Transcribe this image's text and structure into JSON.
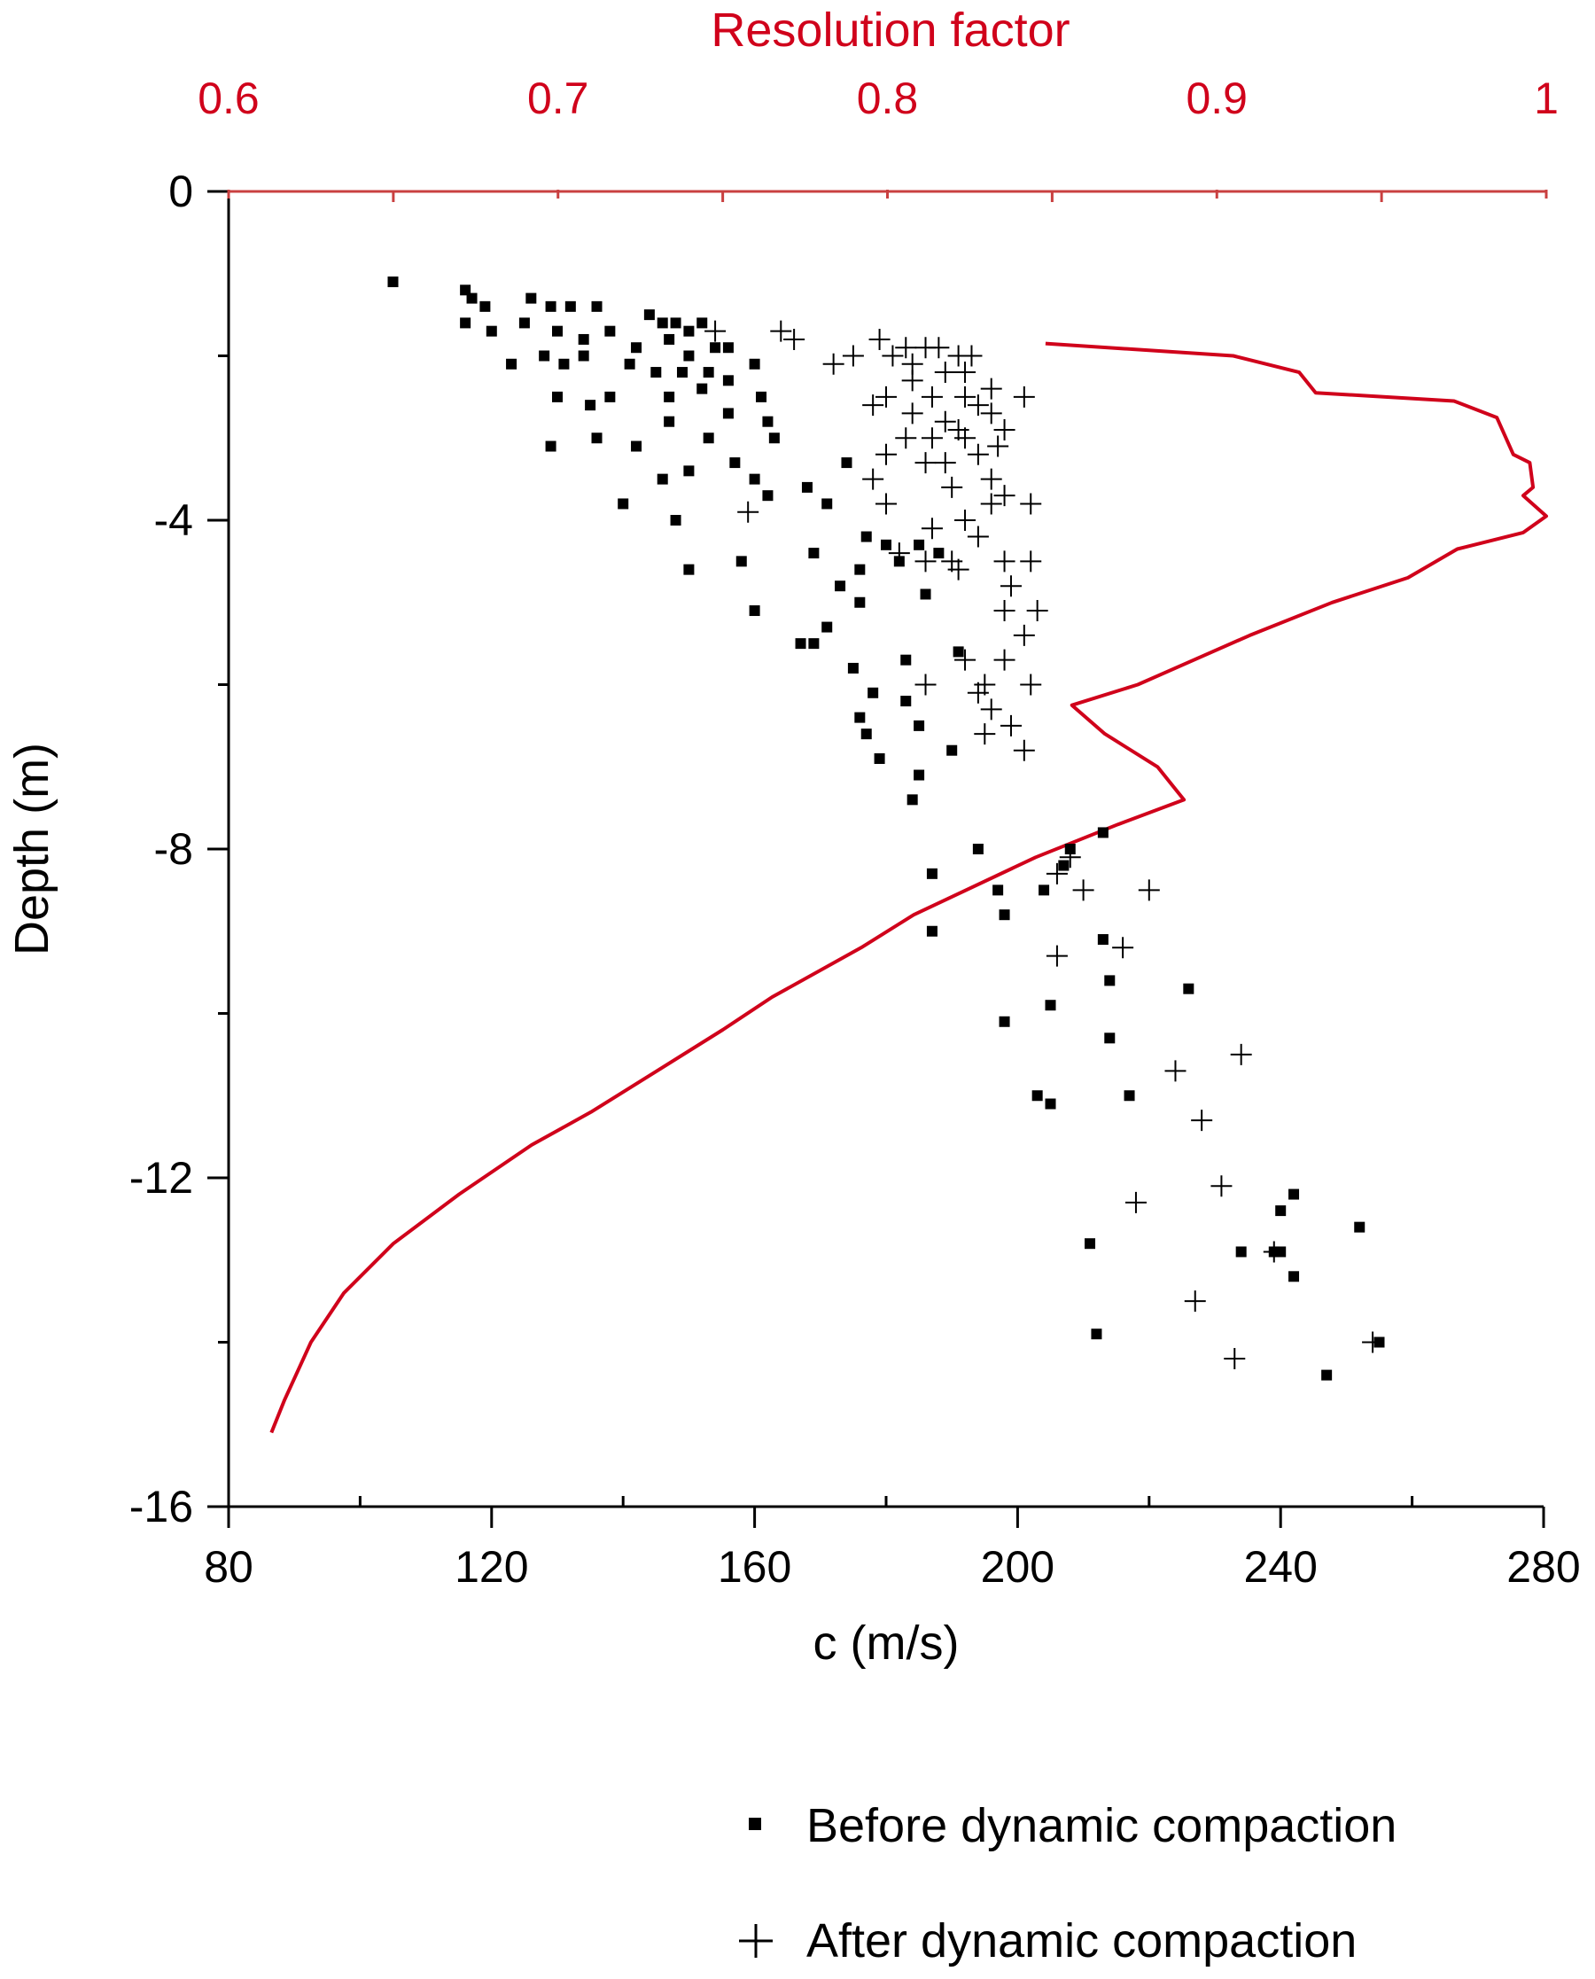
{
  "chart_data": {
    "type": "scatter",
    "xlabel": "c (m/s)",
    "ylabel": "Depth (m)",
    "x2label": "Resolution factor",
    "xlim": [
      80,
      280
    ],
    "ylim": [
      -16,
      0
    ],
    "x2lim": [
      0.6,
      1
    ],
    "x_ticks": [
      80,
      120,
      160,
      200,
      240,
      280
    ],
    "y_ticks": [
      0,
      -4,
      -8,
      -12,
      -16
    ],
    "x2_ticks": [
      0.6,
      0.7,
      0.8,
      0.9,
      1
    ],
    "x_tick_labels": [
      "80",
      "120",
      "160",
      "200",
      "240",
      "280"
    ],
    "y_tick_labels": [
      "0",
      "-4",
      "-8",
      "-12",
      "-16"
    ],
    "x2_tick_labels": [
      "0.6",
      "0.7",
      "0.8",
      "0.9",
      "1"
    ],
    "grid": false,
    "legend_position": "bottom-right",
    "series": [
      {
        "name": "Before dynamic compaction",
        "marker": "square",
        "color": "#000000",
        "points": [
          [
            105,
            -1.1
          ],
          [
            116,
            -1.2
          ],
          [
            117,
            -1.3
          ],
          [
            119,
            -1.4
          ],
          [
            116,
            -1.6
          ],
          [
            120,
            -1.7
          ],
          [
            126,
            -1.3
          ],
          [
            129,
            -1.4
          ],
          [
            132,
            -1.4
          ],
          [
            125,
            -1.6
          ],
          [
            130,
            -1.7
          ],
          [
            136,
            -1.4
          ],
          [
            144,
            -1.5
          ],
          [
            146,
            -1.6
          ],
          [
            148,
            -1.6
          ],
          [
            150,
            -1.7
          ],
          [
            152,
            -1.6
          ],
          [
            147,
            -1.8
          ],
          [
            154,
            -1.9
          ],
          [
            156,
            -1.9
          ],
          [
            150,
            -2.0
          ],
          [
            138,
            -1.7
          ],
          [
            142,
            -1.9
          ],
          [
            134,
            -1.8
          ],
          [
            128,
            -2.0
          ],
          [
            123,
            -2.1
          ],
          [
            131,
            -2.1
          ],
          [
            134,
            -2.0
          ],
          [
            141,
            -2.1
          ],
          [
            145,
            -2.2
          ],
          [
            149,
            -2.2
          ],
          [
            153,
            -2.2
          ],
          [
            156,
            -2.3
          ],
          [
            160,
            -2.1
          ],
          [
            161,
            -2.5
          ],
          [
            152,
            -2.4
          ],
          [
            147,
            -2.5
          ],
          [
            138,
            -2.5
          ],
          [
            135,
            -2.6
          ],
          [
            130,
            -2.5
          ],
          [
            147,
            -2.8
          ],
          [
            156,
            -2.7
          ],
          [
            162,
            -2.8
          ],
          [
            163,
            -3.0
          ],
          [
            157,
            -3.3
          ],
          [
            153,
            -3.0
          ],
          [
            142,
            -3.1
          ],
          [
            136,
            -3.0
          ],
          [
            129,
            -3.1
          ],
          [
            150,
            -3.4
          ],
          [
            146,
            -3.5
          ],
          [
            160,
            -3.5
          ],
          [
            168,
            -3.6
          ],
          [
            174,
            -3.3
          ],
          [
            162,
            -3.7
          ],
          [
            171,
            -3.8
          ],
          [
            148,
            -4.0
          ],
          [
            140,
            -3.8
          ],
          [
            150,
            -4.6
          ],
          [
            158,
            -4.5
          ],
          [
            169,
            -4.4
          ],
          [
            177,
            -4.2
          ],
          [
            180,
            -4.3
          ],
          [
            176,
            -4.6
          ],
          [
            182,
            -4.5
          ],
          [
            185,
            -4.3
          ],
          [
            188,
            -4.4
          ],
          [
            186,
            -4.9
          ],
          [
            173,
            -4.8
          ],
          [
            176,
            -5.0
          ],
          [
            171,
            -5.3
          ],
          [
            169,
            -5.5
          ],
          [
            160,
            -5.1
          ],
          [
            167,
            -5.5
          ],
          [
            175,
            -5.8
          ],
          [
            178,
            -6.1
          ],
          [
            176,
            -6.4
          ],
          [
            183,
            -6.2
          ],
          [
            185,
            -6.5
          ],
          [
            183,
            -5.7
          ],
          [
            191,
            -5.6
          ],
          [
            190,
            -6.8
          ],
          [
            179,
            -6.9
          ],
          [
            177,
            -6.6
          ],
          [
            185,
            -7.1
          ],
          [
            184,
            -7.4
          ],
          [
            187,
            -8.3
          ],
          [
            194,
            -8.0
          ],
          [
            198,
            -8.8
          ],
          [
            197,
            -8.5
          ],
          [
            204,
            -8.5
          ],
          [
            207,
            -8.2
          ],
          [
            208,
            -8.0
          ],
          [
            213,
            -7.8
          ],
          [
            213,
            -9.1
          ],
          [
            187,
            -9.0
          ],
          [
            214,
            -9.6
          ],
          [
            226,
            -9.7
          ],
          [
            198,
            -10.1
          ],
          [
            205,
            -9.9
          ],
          [
            214,
            -10.3
          ],
          [
            203,
            -11.0
          ],
          [
            205,
            -11.1
          ],
          [
            217,
            -11.0
          ],
          [
            211,
            -12.8
          ],
          [
            234,
            -12.9
          ],
          [
            240,
            -12.4
          ],
          [
            242,
            -12.2
          ],
          [
            240,
            -12.9
          ],
          [
            239,
            -12.9
          ],
          [
            242,
            -13.2
          ],
          [
            252,
            -12.6
          ],
          [
            212,
            -13.9
          ],
          [
            255,
            -14.0
          ],
          [
            247,
            -14.4
          ]
        ]
      },
      {
        "name": "After dynamic compaction",
        "marker": "plus",
        "color": "#000000",
        "points": [
          [
            154,
            -1.7
          ],
          [
            164,
            -1.7
          ],
          [
            166,
            -1.8
          ],
          [
            172,
            -2.1
          ],
          [
            175,
            -2.0
          ],
          [
            179,
            -1.8
          ],
          [
            183,
            -1.9
          ],
          [
            186,
            -1.9
          ],
          [
            181,
            -2.0
          ],
          [
            188,
            -1.9
          ],
          [
            191,
            -2.0
          ],
          [
            193,
            -2.0
          ],
          [
            184,
            -2.1
          ],
          [
            189,
            -2.2
          ],
          [
            192,
            -2.2
          ],
          [
            184,
            -2.3
          ],
          [
            180,
            -2.5
          ],
          [
            187,
            -2.5
          ],
          [
            192,
            -2.5
          ],
          [
            196,
            -2.4
          ],
          [
            201,
            -2.5
          ],
          [
            178,
            -2.6
          ],
          [
            184,
            -2.7
          ],
          [
            189,
            -2.8
          ],
          [
            191,
            -2.9
          ],
          [
            194,
            -2.6
          ],
          [
            196,
            -2.7
          ],
          [
            198,
            -2.9
          ],
          [
            183,
            -3.0
          ],
          [
            187,
            -3.0
          ],
          [
            192,
            -3.0
          ],
          [
            197,
            -3.1
          ],
          [
            194,
            -3.2
          ],
          [
            180,
            -3.2
          ],
          [
            186,
            -3.3
          ],
          [
            189,
            -3.3
          ],
          [
            178,
            -3.5
          ],
          [
            190,
            -3.6
          ],
          [
            196,
            -3.5
          ],
          [
            198,
            -3.7
          ],
          [
            196,
            -3.8
          ],
          [
            202,
            -3.8
          ],
          [
            180,
            -3.8
          ],
          [
            159,
            -3.9
          ],
          [
            187,
            -4.1
          ],
          [
            192,
            -4.0
          ],
          [
            194,
            -4.2
          ],
          [
            190,
            -4.5
          ],
          [
            186,
            -4.5
          ],
          [
            182,
            -4.4
          ],
          [
            191,
            -4.6
          ],
          [
            198,
            -4.5
          ],
          [
            202,
            -4.5
          ],
          [
            199,
            -4.8
          ],
          [
            198,
            -5.1
          ],
          [
            203,
            -5.1
          ],
          [
            201,
            -5.4
          ],
          [
            198,
            -5.7
          ],
          [
            192,
            -5.7
          ],
          [
            195,
            -6.0
          ],
          [
            194,
            -6.1
          ],
          [
            186,
            -6.0
          ],
          [
            202,
            -6.0
          ],
          [
            196,
            -6.3
          ],
          [
            199,
            -6.5
          ],
          [
            201,
            -6.8
          ],
          [
            195,
            -6.6
          ],
          [
            208,
            -8.1
          ],
          [
            206,
            -8.3
          ],
          [
            210,
            -8.5
          ],
          [
            220,
            -8.5
          ],
          [
            216,
            -9.2
          ],
          [
            206,
            -9.3
          ],
          [
            234,
            -10.5
          ],
          [
            224,
            -10.7
          ],
          [
            228,
            -11.3
          ],
          [
            231,
            -12.1
          ],
          [
            218,
            -12.3
          ],
          [
            227,
            -13.5
          ],
          [
            239,
            -12.9
          ],
          [
            233,
            -14.2
          ],
          [
            254,
            -14.0
          ]
        ]
      },
      {
        "name": "",
        "type": "line",
        "axis": "top",
        "color": "#d0021b",
        "points": [
          [
            0.848,
            -1.85
          ],
          [
            0.905,
            -2.0
          ],
          [
            0.925,
            -2.2
          ],
          [
            0.93,
            -2.45
          ],
          [
            0.972,
            -2.55
          ],
          [
            0.985,
            -2.75
          ],
          [
            0.99,
            -3.2
          ],
          [
            0.995,
            -3.3
          ],
          [
            0.996,
            -3.6
          ],
          [
            0.993,
            -3.7
          ],
          [
            1.0,
            -3.95
          ],
          [
            0.993,
            -4.15
          ],
          [
            0.973,
            -4.35
          ],
          [
            0.958,
            -4.7
          ],
          [
            0.935,
            -5.0
          ],
          [
            0.91,
            -5.4
          ],
          [
            0.893,
            -5.7
          ],
          [
            0.876,
            -6.0
          ],
          [
            0.856,
            -6.25
          ],
          [
            0.866,
            -6.6
          ],
          [
            0.882,
            -7.0
          ],
          [
            0.89,
            -7.4
          ],
          [
            0.87,
            -7.7
          ],
          [
            0.845,
            -8.1
          ],
          [
            0.808,
            -8.8
          ],
          [
            0.792,
            -9.2
          ],
          [
            0.765,
            -9.8
          ],
          [
            0.75,
            -10.2
          ],
          [
            0.73,
            -10.7
          ],
          [
            0.71,
            -11.2
          ],
          [
            0.692,
            -11.6
          ],
          [
            0.67,
            -12.2
          ],
          [
            0.65,
            -12.8
          ],
          [
            0.635,
            -13.4
          ],
          [
            0.625,
            -14.0
          ],
          [
            0.617,
            -14.7
          ],
          [
            0.613,
            -15.1
          ]
        ]
      }
    ]
  },
  "legend": {
    "before_label": "Before dynamic compaction",
    "after_label": "After dynamic compaction"
  }
}
